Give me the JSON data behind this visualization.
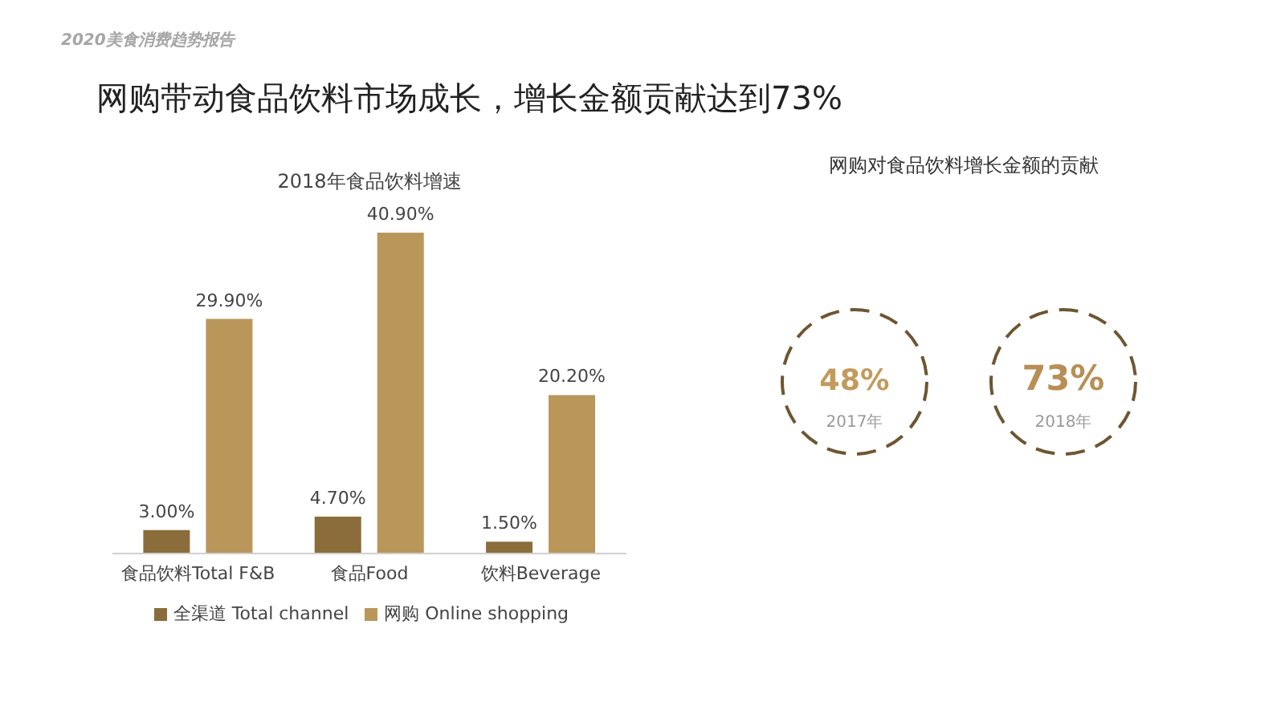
{
  "chart_data": [
    {
      "type": "bar",
      "title": "2018年食品饮料增速",
      "annotations": [
        "2020美食消费趋势报告",
        "网购带动食品饮料市场成长，增长金额贡献达到73%"
      ],
      "categories": [
        "食品饮料Total F&B",
        "食品Food",
        "饮料Beverage"
      ],
      "series": [
        {
          "name": "全渠道 Total channel",
          "color": "#8b6d3b",
          "values": [
            3.0,
            4.7,
            1.5
          ],
          "value_labels": [
            "3.00%",
            "4.70%",
            "1.50%"
          ]
        },
        {
          "name": "网购 Online shopping",
          "color": "#b9975b",
          "values": [
            29.9,
            40.9,
            20.2
          ],
          "value_labels": [
            "29.90%",
            "40.90%",
            "20.20%"
          ]
        }
      ],
      "legend": "bottom"
    },
    {
      "type": "other",
      "title": "网购对食品饮料增长金额的贡献",
      "categories": [
        "2017年",
        "2018年"
      ],
      "values": [
        48,
        73
      ],
      "value_labels": [
        "48%",
        "73%"
      ],
      "color": "#6e5631",
      "colors": [
        "#c39a5c",
        "#b98e55"
      ]
    }
  ]
}
